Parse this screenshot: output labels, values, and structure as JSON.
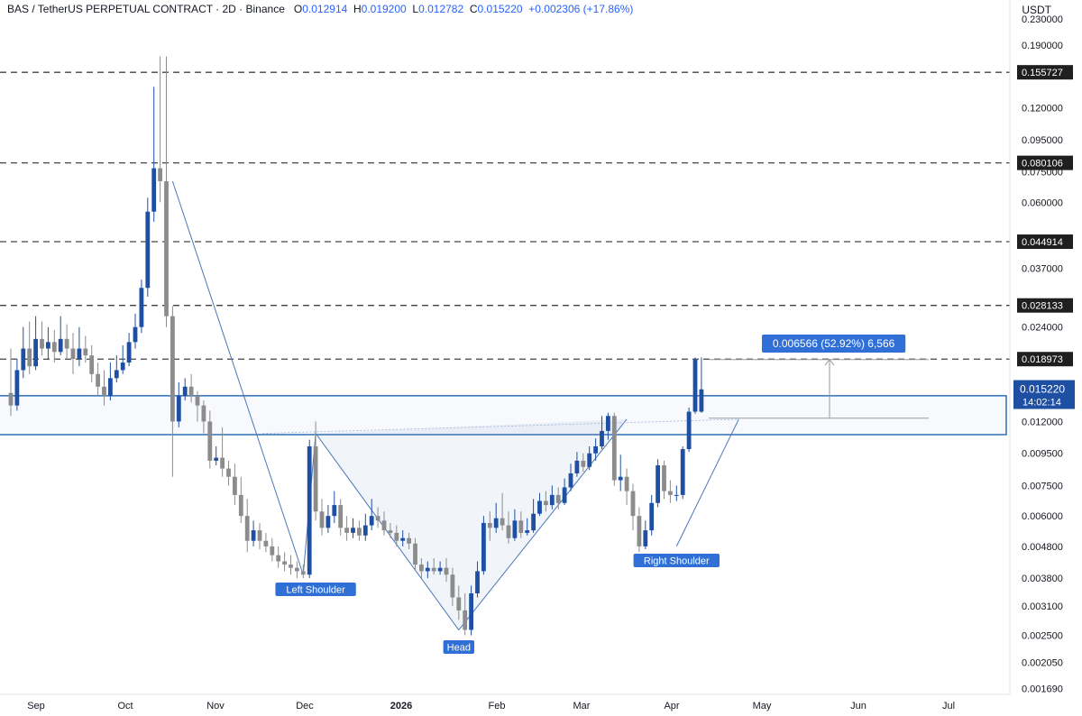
{
  "header": {
    "symbol": "BAS / TetherUS PERPETUAL CONTRACT · 2D · Binance",
    "open_label": "O",
    "open": "0.012914",
    "high_label": "H",
    "high": "0.019200",
    "low_label": "L",
    "low": "0.012782",
    "close_label": "C",
    "close": "0.015220",
    "change": "+0.002306 (+17.86%)"
  },
  "axis_unit": "USDT",
  "colors": {
    "up": "#1e4fa3",
    "down": "#8c8c8c",
    "zone": "#2f6fb5",
    "accent": "#2f6fd6"
  },
  "chart_data": {
    "type": "candlestick",
    "scale": "log",
    "ylim": [
      0.00162,
      0.235
    ],
    "y_ticks": [
      "0.230000",
      "0.190000",
      "0.120000",
      "0.095000",
      "0.075000",
      "0.060000",
      "0.037000",
      "0.024000",
      "0.012000",
      "0.009500",
      "0.007500",
      "0.006000",
      "0.004800",
      "0.003800",
      "0.003100",
      "0.002500",
      "0.002050",
      "0.001690"
    ],
    "x_ticks": [
      "Sep",
      "Oct",
      "Nov",
      "Dec",
      "2026",
      "Feb",
      "Mar",
      "Apr",
      "May",
      "Jun",
      "Jul"
    ],
    "resistance_levels": [
      "0.155727",
      "0.080106",
      "0.044914",
      "0.028133",
      "0.018973"
    ],
    "current_price": "0.015220",
    "countdown": "14:02:14",
    "zone": [
      0.0109,
      0.0145
    ],
    "measure_label": "0.006566 (52.92%) 6,566",
    "annotations": [
      "Left Shoulder",
      "Head",
      "Right Shoulder"
    ],
    "candles": [
      [
        0.0148,
        0.0135,
        0.0205,
        0.0125
      ],
      [
        0.0135,
        0.0175,
        0.019,
        0.013
      ],
      [
        0.0175,
        0.0205,
        0.024,
        0.0165
      ],
      [
        0.0205,
        0.018,
        0.025,
        0.017
      ],
      [
        0.018,
        0.022,
        0.026,
        0.0175
      ],
      [
        0.022,
        0.0205,
        0.025,
        0.0195
      ],
      [
        0.0205,
        0.0215,
        0.024,
        0.019
      ],
      [
        0.0215,
        0.02,
        0.0235,
        0.0185
      ],
      [
        0.02,
        0.022,
        0.026,
        0.0195
      ],
      [
        0.022,
        0.0205,
        0.0245,
        0.019
      ],
      [
        0.0205,
        0.019,
        0.023,
        0.017
      ],
      [
        0.019,
        0.0205,
        0.024,
        0.018
      ],
      [
        0.0205,
        0.0195,
        0.0225,
        0.0185
      ],
      [
        0.0195,
        0.017,
        0.021,
        0.016
      ],
      [
        0.017,
        0.0155,
        0.0185,
        0.0145
      ],
      [
        0.0155,
        0.0145,
        0.0175,
        0.0135
      ],
      [
        0.0145,
        0.0165,
        0.0185,
        0.014
      ],
      [
        0.0165,
        0.0175,
        0.0195,
        0.016
      ],
      [
        0.0175,
        0.0185,
        0.021,
        0.017
      ],
      [
        0.0185,
        0.0215,
        0.023,
        0.018
      ],
      [
        0.0215,
        0.024,
        0.0265,
        0.0205
      ],
      [
        0.024,
        0.032,
        0.034,
        0.023
      ],
      [
        0.032,
        0.056,
        0.062,
        0.03
      ],
      [
        0.056,
        0.077,
        0.14,
        0.052
      ],
      [
        0.077,
        0.07,
        0.175,
        0.06
      ],
      [
        0.07,
        0.026,
        0.175,
        0.024
      ],
      [
        0.026,
        0.012,
        0.028,
        0.008
      ],
      [
        0.012,
        0.0145,
        0.016,
        0.0115
      ],
      [
        0.0145,
        0.0155,
        0.0165,
        0.014
      ],
      [
        0.0155,
        0.0145,
        0.017,
        0.0138
      ],
      [
        0.0145,
        0.0135,
        0.015,
        0.012
      ],
      [
        0.0135,
        0.012,
        0.014,
        0.011
      ],
      [
        0.012,
        0.009,
        0.013,
        0.0085
      ],
      [
        0.009,
        0.0092,
        0.01,
        0.0087
      ],
      [
        0.0092,
        0.0085,
        0.0115,
        0.008
      ],
      [
        0.0085,
        0.008,
        0.009,
        0.0075
      ],
      [
        0.008,
        0.007,
        0.0088,
        0.0065
      ],
      [
        0.007,
        0.006,
        0.008,
        0.0057
      ],
      [
        0.006,
        0.005,
        0.0068,
        0.0046
      ],
      [
        0.005,
        0.0054,
        0.0058,
        0.0048
      ],
      [
        0.0054,
        0.005,
        0.0057,
        0.0047
      ],
      [
        0.005,
        0.0048,
        0.0053,
        0.0046
      ],
      [
        0.0048,
        0.0045,
        0.0051,
        0.0043
      ],
      [
        0.0045,
        0.0043,
        0.0048,
        0.0041
      ],
      [
        0.0043,
        0.0042,
        0.0046,
        0.004
      ],
      [
        0.0042,
        0.0041,
        0.0045,
        0.0039
      ],
      [
        0.0041,
        0.004,
        0.0043,
        0.0038
      ],
      [
        0.004,
        0.0039,
        0.0042,
        0.0038
      ],
      [
        0.0039,
        0.01,
        0.0105,
        0.0038
      ],
      [
        0.01,
        0.0062,
        0.012,
        0.0058
      ],
      [
        0.0062,
        0.0055,
        0.0068,
        0.0052
      ],
      [
        0.0055,
        0.006,
        0.0065,
        0.0053
      ],
      [
        0.006,
        0.0065,
        0.0072,
        0.0057
      ],
      [
        0.0065,
        0.0055,
        0.0068,
        0.0052
      ],
      [
        0.0055,
        0.0053,
        0.006,
        0.005
      ],
      [
        0.0053,
        0.0055,
        0.0059,
        0.0051
      ],
      [
        0.0055,
        0.0052,
        0.0058,
        0.005
      ],
      [
        0.0052,
        0.0056,
        0.0061,
        0.005
      ],
      [
        0.0056,
        0.006,
        0.0068,
        0.0054
      ],
      [
        0.006,
        0.0058,
        0.0064,
        0.0055
      ],
      [
        0.0058,
        0.0054,
        0.0062,
        0.0052
      ],
      [
        0.0054,
        0.0053,
        0.0057,
        0.0051
      ],
      [
        0.0053,
        0.005,
        0.0056,
        0.0048
      ],
      [
        0.005,
        0.0051,
        0.0054,
        0.0048
      ],
      [
        0.0051,
        0.0049,
        0.0053,
        0.0047
      ],
      [
        0.0049,
        0.0042,
        0.0051,
        0.004
      ],
      [
        0.0042,
        0.004,
        0.0044,
        0.0038
      ],
      [
        0.004,
        0.0041,
        0.0043,
        0.0038
      ],
      [
        0.0041,
        0.004,
        0.0044,
        0.0039
      ],
      [
        0.004,
        0.0041,
        0.0043,
        0.0039
      ],
      [
        0.0041,
        0.0039,
        0.0044,
        0.0037
      ],
      [
        0.0039,
        0.0033,
        0.0041,
        0.0031
      ],
      [
        0.0033,
        0.003,
        0.0036,
        0.0028
      ],
      [
        0.003,
        0.0026,
        0.0034,
        0.0025
      ],
      [
        0.0026,
        0.0034,
        0.0036,
        0.0025
      ],
      [
        0.0034,
        0.004,
        0.0043,
        0.0033
      ],
      [
        0.004,
        0.0057,
        0.006,
        0.0039
      ],
      [
        0.0057,
        0.0055,
        0.0062,
        0.005
      ],
      [
        0.0055,
        0.0059,
        0.0066,
        0.0053
      ],
      [
        0.0059,
        0.0056,
        0.0071,
        0.0054
      ],
      [
        0.0056,
        0.0051,
        0.0062,
        0.0049
      ],
      [
        0.0051,
        0.0058,
        0.0063,
        0.005
      ],
      [
        0.0058,
        0.0053,
        0.0062,
        0.0051
      ],
      [
        0.0053,
        0.0054,
        0.0059,
        0.0052
      ],
      [
        0.0054,
        0.0061,
        0.0068,
        0.0053
      ],
      [
        0.0061,
        0.0067,
        0.0071,
        0.006
      ],
      [
        0.0067,
        0.0065,
        0.0072,
        0.0062
      ],
      [
        0.0065,
        0.007,
        0.0075,
        0.0063
      ],
      [
        0.007,
        0.0066,
        0.0074,
        0.0063
      ],
      [
        0.0066,
        0.0074,
        0.0079,
        0.0065
      ],
      [
        0.0074,
        0.0082,
        0.0088,
        0.0072
      ],
      [
        0.0082,
        0.009,
        0.0096,
        0.008
      ],
      [
        0.009,
        0.0086,
        0.0095,
        0.0083
      ],
      [
        0.0086,
        0.0095,
        0.01,
        0.0084
      ],
      [
        0.0095,
        0.01,
        0.0106,
        0.009
      ],
      [
        0.01,
        0.0112,
        0.0125,
        0.0098
      ],
      [
        0.0112,
        0.0125,
        0.0128,
        0.0105
      ],
      [
        0.0125,
        0.0078,
        0.0128,
        0.0075
      ],
      [
        0.0078,
        0.008,
        0.0094,
        0.0072
      ],
      [
        0.008,
        0.0072,
        0.0085,
        0.0065
      ],
      [
        0.0072,
        0.006,
        0.0076,
        0.0054
      ],
      [
        0.006,
        0.0048,
        0.0064,
        0.0046
      ],
      [
        0.0048,
        0.0054,
        0.0058,
        0.0047
      ],
      [
        0.0054,
        0.0066,
        0.007,
        0.0052
      ],
      [
        0.0066,
        0.0087,
        0.0091,
        0.0064
      ],
      [
        0.0087,
        0.0072,
        0.009,
        0.0068
      ],
      [
        0.0072,
        0.007,
        0.0078,
        0.0066
      ],
      [
        0.007,
        0.007,
        0.0075,
        0.0067
      ],
      [
        0.007,
        0.0098,
        0.01,
        0.0068
      ],
      [
        0.0098,
        0.0129,
        0.0133,
        0.0096
      ],
      [
        0.0129,
        0.0189,
        0.0192,
        0.0127
      ],
      [
        0.0129,
        0.0152,
        0.0192,
        0.0128
      ]
    ]
  }
}
